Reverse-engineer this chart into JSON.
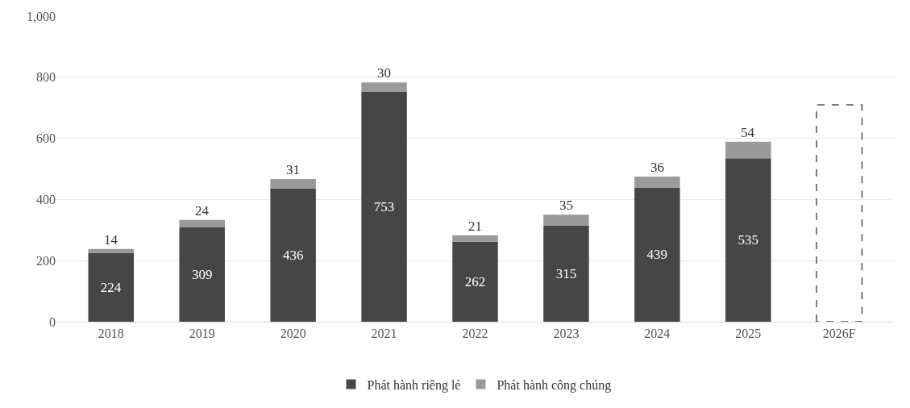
{
  "chart_data": {
    "type": "bar",
    "stacked": true,
    "categories": [
      "2018",
      "2019",
      "2020",
      "2021",
      "2022",
      "2023",
      "2024",
      "2025",
      "2026F"
    ],
    "series": [
      {
        "name": "Phát hành riêng lẻ",
        "color": "#464646",
        "values": [
          224,
          309,
          436,
          753,
          262,
          315,
          439,
          535,
          null
        ],
        "value_labels": [
          "224",
          "309",
          "436",
          "753",
          "262",
          "315",
          "439",
          "535",
          null
        ]
      },
      {
        "name": "Phát hành công chúng",
        "color": "#9a9a9a",
        "values": [
          14,
          24,
          31,
          30,
          21,
          35,
          36,
          54,
          null
        ],
        "value_labels": [
          "14",
          "24",
          "31",
          "30",
          "21",
          "35",
          "36",
          "54",
          null
        ]
      },
      {
        "color": "#505050",
        "line_style": "dashed",
        "values": [
          null,
          null,
          null,
          null,
          null,
          null,
          null,
          null,
          710
        ]
      }
    ],
    "ylim": [
      0,
      1000
    ],
    "yticks": [
      0,
      200,
      400,
      600,
      800,
      {
        "value": 1000,
        "label": "1,000"
      }
    ],
    "grid": "y",
    "legend": "bottom"
  }
}
